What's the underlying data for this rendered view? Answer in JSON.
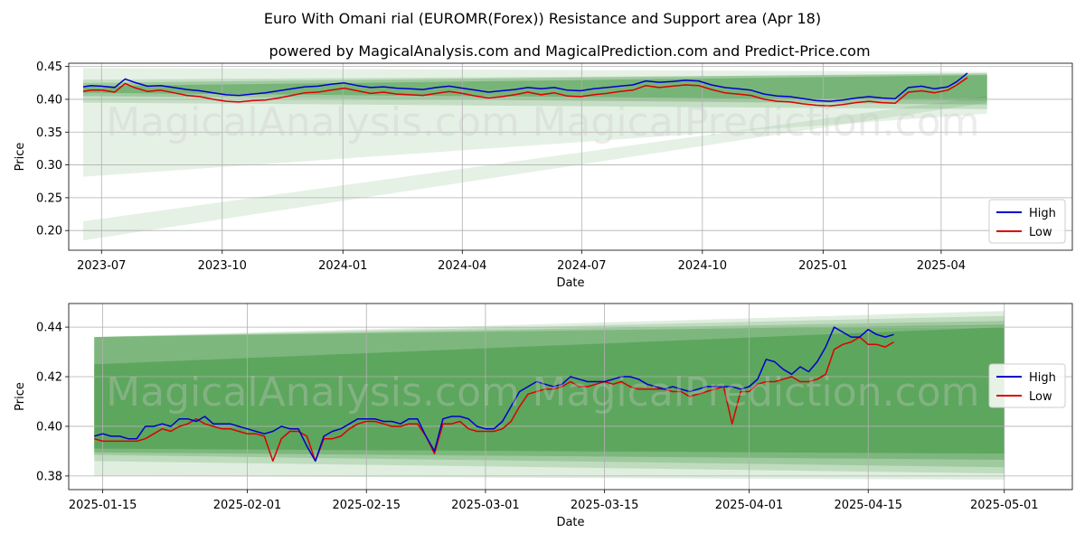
{
  "title": "Euro With Omani rial (EUROMR(Forex)) Resistance and Support area (Apr 18)",
  "subtitle": "powered by MagicalAnalysis.com and MagicalPrediction.com and Predict-Price.com",
  "watermarks": [
    "MagicalAnalysis.com",
    "MagicalPrediction.com"
  ],
  "colors": {
    "high": "#0000cc",
    "low": "#dd0000",
    "band": "#2e8b2e"
  },
  "chart_data": [
    {
      "type": "line",
      "xlabel": "Date",
      "ylabel": "Price",
      "ylim": [
        0.17,
        0.455
      ],
      "xlim": [
        -25,
        740
      ],
      "x_unit": "days since 2023-07-01",
      "xticks": [
        {
          "value": 0,
          "label": "2023-07"
        },
        {
          "value": 92,
          "label": "2023-10"
        },
        {
          "value": 184,
          "label": "2024-01"
        },
        {
          "value": 275,
          "label": "2024-04"
        },
        {
          "value": 366,
          "label": "2024-07"
        },
        {
          "value": 458,
          "label": "2024-10"
        },
        {
          "value": 550,
          "label": "2025-01"
        },
        {
          "value": 640,
          "label": "2025-04"
        }
      ],
      "yticks": [
        0.2,
        0.25,
        0.3,
        0.35,
        0.4,
        0.45
      ],
      "ytick_labels": [
        "0.20",
        "0.25",
        "0.30",
        "0.35",
        "0.40",
        "0.45"
      ],
      "legend": {
        "position": "bottom-right",
        "entries": [
          "High",
          "Low"
        ]
      },
      "bands": [
        {
          "x0": -14,
          "x1": 675,
          "top0": 0.448,
          "top1": 0.442,
          "bot0": 0.282,
          "bot1": 0.378,
          "opacity": 0.12
        },
        {
          "x0": -14,
          "x1": 675,
          "top0": 0.214,
          "top1": 0.405,
          "bot0": 0.185,
          "bot1": 0.395,
          "opacity": 0.12
        },
        {
          "x0": -14,
          "x1": 675,
          "top0": 0.43,
          "top1": 0.438,
          "bot0": 0.395,
          "bot1": 0.385,
          "opacity": 0.18
        },
        {
          "x0": -14,
          "x1": 675,
          "top0": 0.425,
          "top1": 0.44,
          "bot0": 0.405,
          "bot1": 0.392,
          "opacity": 0.25
        },
        {
          "x0": -14,
          "x1": 675,
          "top0": 0.42,
          "top1": 0.437,
          "bot0": 0.41,
          "bot1": 0.398,
          "opacity": 0.35
        }
      ],
      "series": [
        {
          "name": "High",
          "x": [
            -14,
            -8,
            0,
            10,
            18,
            25,
            35,
            45,
            55,
            65,
            75,
            85,
            95,
            105,
            115,
            125,
            135,
            145,
            155,
            165,
            175,
            185,
            195,
            205,
            215,
            225,
            235,
            245,
            255,
            265,
            275,
            285,
            295,
            305,
            315,
            325,
            335,
            345,
            355,
            365,
            375,
            385,
            395,
            405,
            415,
            425,
            435,
            445,
            455,
            465,
            475,
            485,
            495,
            505,
            515,
            525,
            535,
            545,
            555,
            565,
            575,
            585,
            595,
            605,
            615,
            625,
            635,
            645,
            652,
            660
          ],
          "values": [
            0.419,
            0.421,
            0.42,
            0.418,
            0.431,
            0.426,
            0.42,
            0.421,
            0.418,
            0.415,
            0.413,
            0.41,
            0.407,
            0.406,
            0.408,
            0.41,
            0.413,
            0.416,
            0.419,
            0.42,
            0.423,
            0.425,
            0.421,
            0.418,
            0.419,
            0.417,
            0.416,
            0.415,
            0.418,
            0.42,
            0.417,
            0.414,
            0.411,
            0.413,
            0.415,
            0.418,
            0.416,
            0.418,
            0.414,
            0.413,
            0.416,
            0.418,
            0.42,
            0.422,
            0.428,
            0.426,
            0.427,
            0.429,
            0.428,
            0.422,
            0.418,
            0.416,
            0.414,
            0.408,
            0.405,
            0.404,
            0.401,
            0.398,
            0.397,
            0.399,
            0.402,
            0.404,
            0.402,
            0.401,
            0.418,
            0.42,
            0.416,
            0.419,
            0.427,
            0.44
          ]
        },
        {
          "name": "Low",
          "x": [
            -14,
            -8,
            0,
            10,
            18,
            25,
            35,
            45,
            55,
            65,
            75,
            85,
            95,
            105,
            115,
            125,
            135,
            145,
            155,
            165,
            175,
            185,
            195,
            205,
            215,
            225,
            235,
            245,
            255,
            265,
            275,
            285,
            295,
            305,
            315,
            325,
            335,
            345,
            355,
            365,
            375,
            385,
            395,
            405,
            415,
            425,
            435,
            445,
            455,
            465,
            475,
            485,
            495,
            505,
            515,
            525,
            535,
            545,
            555,
            565,
            575,
            585,
            595,
            605,
            615,
            625,
            635,
            645,
            652,
            660
          ],
          "values": [
            0.412,
            0.414,
            0.414,
            0.411,
            0.424,
            0.418,
            0.412,
            0.414,
            0.41,
            0.406,
            0.404,
            0.4,
            0.397,
            0.396,
            0.398,
            0.399,
            0.402,
            0.406,
            0.41,
            0.411,
            0.414,
            0.417,
            0.413,
            0.409,
            0.411,
            0.408,
            0.407,
            0.406,
            0.409,
            0.412,
            0.409,
            0.405,
            0.402,
            0.404,
            0.407,
            0.411,
            0.407,
            0.41,
            0.405,
            0.404,
            0.407,
            0.409,
            0.412,
            0.414,
            0.421,
            0.418,
            0.42,
            0.422,
            0.421,
            0.415,
            0.41,
            0.408,
            0.406,
            0.4,
            0.397,
            0.396,
            0.393,
            0.391,
            0.39,
            0.392,
            0.395,
            0.397,
            0.395,
            0.394,
            0.411,
            0.413,
            0.41,
            0.414,
            0.422,
            0.433
          ]
        }
      ]
    },
    {
      "type": "line",
      "xlabel": "Date",
      "ylabel": "Price",
      "ylim": [
        0.3745,
        0.4495
      ],
      "xlim": [
        -3,
        115
      ],
      "x_unit": "days since 2025-01-14",
      "xticks": [
        {
          "value": 1,
          "label": "2025-01-15"
        },
        {
          "value": 18,
          "label": "2025-02-01"
        },
        {
          "value": 32,
          "label": "2025-02-15"
        },
        {
          "value": 46,
          "label": "2025-03-01"
        },
        {
          "value": 60,
          "label": "2025-03-15"
        },
        {
          "value": 77,
          "label": "2025-04-01"
        },
        {
          "value": 91,
          "label": "2025-04-15"
        },
        {
          "value": 107,
          "label": "2025-05-01"
        }
      ],
      "yticks": [
        0.38,
        0.4,
        0.42,
        0.44
      ],
      "ytick_labels": [
        "0.38",
        "0.40",
        "0.42",
        "0.44"
      ],
      "legend": {
        "position": "center-right",
        "entries": [
          "High",
          "Low"
        ]
      },
      "bands": [
        {
          "x0": 0,
          "x1": 107,
          "top0": 0.436,
          "top1": 0.4465,
          "bot0": 0.38,
          "bot1": 0.3785,
          "opacity": 0.15
        },
        {
          "x0": 0,
          "x1": 107,
          "top0": 0.436,
          "top1": 0.4445,
          "bot0": 0.386,
          "bot1": 0.381,
          "opacity": 0.18
        },
        {
          "x0": 0,
          "x1": 107,
          "top0": 0.436,
          "top1": 0.4425,
          "bot0": 0.3885,
          "bot1": 0.3835,
          "opacity": 0.22
        },
        {
          "x0": 0,
          "x1": 107,
          "top0": 0.436,
          "top1": 0.441,
          "bot0": 0.3895,
          "bot1": 0.3865,
          "opacity": 0.3
        },
        {
          "x0": 0,
          "x1": 107,
          "top0": 0.425,
          "top1": 0.44,
          "bot0": 0.391,
          "bot1": 0.389,
          "opacity": 0.4
        }
      ],
      "series": [
        {
          "name": "High",
          "x": [
            0,
            1,
            2,
            3,
            4,
            5,
            6,
            7,
            8,
            9,
            10,
            11,
            12,
            13,
            14,
            15,
            16,
            17,
            18,
            19,
            20,
            21,
            22,
            23,
            24,
            25,
            26,
            27,
            28,
            29,
            30,
            31,
            32,
            33,
            34,
            35,
            36,
            37,
            38,
            39,
            40,
            41,
            42,
            43,
            44,
            45,
            46,
            47,
            48,
            49,
            50,
            51,
            52,
            53,
            54,
            55,
            56,
            57,
            58,
            59,
            60,
            61,
            62,
            63,
            64,
            65,
            66,
            67,
            68,
            69,
            70,
            71,
            72,
            73,
            74,
            75,
            76,
            77,
            78,
            79,
            80,
            81,
            82,
            83,
            84,
            85,
            86,
            87,
            88,
            89,
            90,
            91,
            92,
            93,
            94
          ],
          "values": [
            0.396,
            0.397,
            0.396,
            0.396,
            0.395,
            0.395,
            0.4,
            0.4,
            0.401,
            0.4,
            0.403,
            0.403,
            0.402,
            0.404,
            0.401,
            0.401,
            0.401,
            0.4,
            0.399,
            0.398,
            0.397,
            0.398,
            0.4,
            0.399,
            0.399,
            0.392,
            0.386,
            0.396,
            0.398,
            0.399,
            0.401,
            0.403,
            0.403,
            0.403,
            0.402,
            0.402,
            0.401,
            0.403,
            0.403,
            0.396,
            0.39,
            0.403,
            0.404,
            0.404,
            0.403,
            0.4,
            0.399,
            0.399,
            0.402,
            0.408,
            0.414,
            0.416,
            0.418,
            0.417,
            0.416,
            0.417,
            0.42,
            0.419,
            0.418,
            0.418,
            0.418,
            0.419,
            0.42,
            0.42,
            0.419,
            0.417,
            0.416,
            0.415,
            0.416,
            0.415,
            0.414,
            0.415,
            0.416,
            0.416,
            0.416,
            0.416,
            0.415,
            0.416,
            0.419,
            0.427,
            0.426,
            0.423,
            0.421,
            0.424,
            0.422,
            0.426,
            0.432,
            0.44,
            0.438,
            0.436,
            0.436,
            0.439,
            0.437,
            0.436,
            0.437
          ]
        },
        {
          "name": "Low",
          "x": [
            0,
            1,
            2,
            3,
            4,
            5,
            6,
            7,
            8,
            9,
            10,
            11,
            12,
            13,
            14,
            15,
            16,
            17,
            18,
            19,
            20,
            21,
            22,
            23,
            24,
            25,
            26,
            27,
            28,
            29,
            30,
            31,
            32,
            33,
            34,
            35,
            36,
            37,
            38,
            39,
            40,
            41,
            42,
            43,
            44,
            45,
            46,
            47,
            48,
            49,
            50,
            51,
            52,
            53,
            54,
            55,
            56,
            57,
            58,
            59,
            60,
            61,
            62,
            63,
            64,
            65,
            66,
            67,
            68,
            69,
            70,
            71,
            72,
            73,
            74,
            75,
            76,
            77,
            78,
            79,
            80,
            81,
            82,
            83,
            84,
            85,
            86,
            87,
            88,
            89,
            90,
            91,
            92,
            93,
            94
          ],
          "values": [
            0.395,
            0.394,
            0.394,
            0.394,
            0.394,
            0.394,
            0.395,
            0.397,
            0.399,
            0.398,
            0.4,
            0.401,
            0.403,
            0.401,
            0.4,
            0.399,
            0.399,
            0.398,
            0.397,
            0.397,
            0.396,
            0.386,
            0.395,
            0.398,
            0.398,
            0.396,
            0.386,
            0.395,
            0.395,
            0.396,
            0.399,
            0.401,
            0.402,
            0.402,
            0.401,
            0.4,
            0.4,
            0.401,
            0.401,
            0.396,
            0.389,
            0.401,
            0.401,
            0.402,
            0.399,
            0.398,
            0.398,
            0.398,
            0.399,
            0.402,
            0.408,
            0.413,
            0.414,
            0.415,
            0.415,
            0.416,
            0.418,
            0.416,
            0.416,
            0.417,
            0.418,
            0.417,
            0.418,
            0.416,
            0.415,
            0.415,
            0.415,
            0.415,
            0.414,
            0.414,
            0.412,
            0.413,
            0.414,
            0.415,
            0.416,
            0.401,
            0.414,
            0.414,
            0.417,
            0.418,
            0.418,
            0.419,
            0.42,
            0.418,
            0.418,
            0.419,
            0.421,
            0.431,
            0.433,
            0.434,
            0.436,
            0.433,
            0.433,
            0.432,
            0.434
          ]
        }
      ]
    }
  ]
}
